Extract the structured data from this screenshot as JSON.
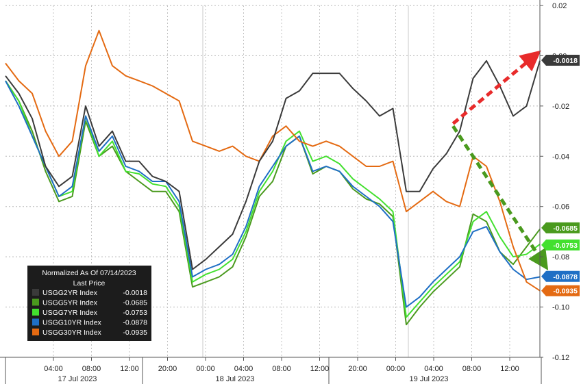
{
  "chart_data": {
    "type": "line",
    "ylim": [
      -0.12,
      0.02
    ],
    "y_ticks": [
      "0.02",
      "0.00",
      "-0.02",
      "-0.04",
      "-0.06",
      "-0.08",
      "-0.10",
      "-0.12"
    ],
    "x_time_labels": [
      "04:00",
      "08:00",
      "12:00",
      "20:00",
      "00:00",
      "04:00",
      "08:00",
      "12:00",
      "20:00",
      "00:00",
      "04:00",
      "08:00",
      "12:00"
    ],
    "x_day_labels": [
      "17 Jul 2023",
      "18 Jul 2023",
      "19 Jul 2023"
    ],
    "legend": {
      "title": "Normalized As Of 07/14/2023",
      "subtitle": "Last Price",
      "placement": "bottom-left"
    },
    "series": [
      {
        "name": "USGG2YR Index",
        "last": "-0.0018",
        "color": "#3a3a3a",
        "badge_text": "#ffffff",
        "values": [
          -0.008,
          -0.015,
          -0.025,
          -0.044,
          -0.052,
          -0.048,
          -0.02,
          -0.036,
          -0.03,
          -0.042,
          -0.042,
          -0.048,
          -0.05,
          -0.054,
          -0.085,
          -0.081,
          -0.076,
          -0.071,
          -0.058,
          -0.042,
          -0.034,
          -0.017,
          -0.014,
          -0.007,
          -0.007,
          -0.007,
          -0.013,
          -0.018,
          -0.024,
          -0.021,
          -0.054,
          -0.054,
          -0.045,
          -0.039,
          -0.03,
          -0.009,
          -0.002,
          -0.012,
          -0.024,
          -0.02,
          -0.002
        ]
      },
      {
        "name": "USGG5YR Index",
        "last": "-0.0685",
        "color": "#4a9a1e",
        "badge_text": "#ffffff",
        "values": [
          -0.01,
          -0.018,
          -0.03,
          -0.046,
          -0.058,
          -0.056,
          -0.026,
          -0.04,
          -0.036,
          -0.046,
          -0.05,
          -0.054,
          -0.054,
          -0.062,
          -0.092,
          -0.09,
          -0.088,
          -0.084,
          -0.072,
          -0.056,
          -0.05,
          -0.036,
          -0.032,
          -0.047,
          -0.044,
          -0.046,
          -0.053,
          -0.057,
          -0.059,
          -0.064,
          -0.107,
          -0.1,
          -0.094,
          -0.089,
          -0.084,
          -0.063,
          -0.066,
          -0.078,
          -0.083,
          -0.076,
          -0.069
        ]
      },
      {
        "name": "USGG7YR Index",
        "last": "-0.0753",
        "color": "#43e02f",
        "badge_text": "#222222",
        "values": [
          -0.01,
          -0.018,
          -0.032,
          -0.044,
          -0.056,
          -0.054,
          -0.024,
          -0.04,
          -0.034,
          -0.046,
          -0.047,
          -0.051,
          -0.052,
          -0.06,
          -0.09,
          -0.087,
          -0.085,
          -0.081,
          -0.07,
          -0.054,
          -0.046,
          -0.034,
          -0.03,
          -0.042,
          -0.04,
          -0.043,
          -0.049,
          -0.053,
          -0.057,
          -0.062,
          -0.104,
          -0.098,
          -0.092,
          -0.087,
          -0.082,
          -0.066,
          -0.062,
          -0.072,
          -0.08,
          -0.079,
          -0.075
        ]
      },
      {
        "name": "USGG10YR Index",
        "last": "-0.0878",
        "color": "#1f6fc5",
        "badge_text": "#ffffff",
        "values": [
          -0.01,
          -0.02,
          -0.032,
          -0.044,
          -0.056,
          -0.052,
          -0.024,
          -0.038,
          -0.032,
          -0.044,
          -0.046,
          -0.05,
          -0.05,
          -0.058,
          -0.088,
          -0.085,
          -0.083,
          -0.079,
          -0.068,
          -0.052,
          -0.044,
          -0.036,
          -0.032,
          -0.046,
          -0.044,
          -0.046,
          -0.052,
          -0.056,
          -0.06,
          -0.066,
          -0.1,
          -0.096,
          -0.09,
          -0.085,
          -0.08,
          -0.07,
          -0.068,
          -0.078,
          -0.085,
          -0.089,
          -0.088
        ]
      },
      {
        "name": "USGG30YR Index",
        "last": "-0.0935",
        "color": "#e46a12",
        "badge_text": "#ffffff",
        "values": [
          -0.003,
          -0.01,
          -0.015,
          -0.03,
          -0.04,
          -0.034,
          -0.004,
          0.01,
          -0.004,
          -0.008,
          -0.01,
          -0.012,
          -0.015,
          -0.018,
          -0.034,
          -0.036,
          -0.038,
          -0.036,
          -0.04,
          -0.042,
          -0.032,
          -0.028,
          -0.034,
          -0.036,
          -0.034,
          -0.036,
          -0.04,
          -0.044,
          -0.044,
          -0.042,
          -0.062,
          -0.058,
          -0.054,
          -0.058,
          -0.06,
          -0.04,
          -0.044,
          -0.058,
          -0.076,
          -0.09,
          -0.0935
        ]
      }
    ],
    "arrows": [
      {
        "color": "#e82b2b",
        "from": [
          33.5,
          -0.027
        ],
        "to": [
          39.5,
          -0.0005
        ]
      },
      {
        "color": "#4a9a1e",
        "from": [
          33.5,
          -0.028
        ],
        "to": [
          40.2,
          -0.082
        ]
      }
    ]
  }
}
